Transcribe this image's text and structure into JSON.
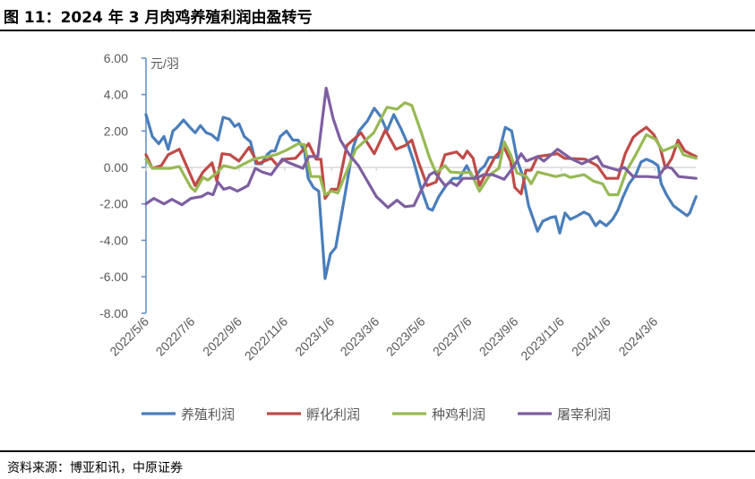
{
  "title": "图 11：2024 年 3 月肉鸡养殖利润由盈转亏",
  "source": "资料来源：博亚和讯，中原证券",
  "chart_data": {
    "type": "line",
    "title": "图 11：2024 年 3 月肉鸡养殖利润由盈转亏",
    "ylabel": "元/羽",
    "xlabel": "",
    "x_unit": "weeks since 2022/5/6",
    "ylim": [
      -8,
      6
    ],
    "yticks": [
      "6.00",
      "4.00",
      "2.00",
      "0.00",
      "-2.00",
      "-4.00",
      "-6.00",
      "-8.00"
    ],
    "ytick_values": [
      6,
      4,
      2,
      0,
      -2,
      -4,
      -6,
      -8
    ],
    "xlim": [
      0,
      104.1
    ],
    "xtick_labels": [
      "2022/5/6",
      "2022/7/6",
      "2022/9/6",
      "2022/11/6",
      "2023/1/6",
      "2023/3/6",
      "2023/5/6",
      "2023/7/6",
      "2023/9/6",
      "2023/11/6",
      "2024/1/6",
      "2024/3/6"
    ],
    "xtick_weeks": [
      0,
      8.7,
      17.6,
      26.3,
      35.1,
      43.6,
      52.3,
      61.1,
      69.9,
      78.6,
      87.4,
      96.3
    ],
    "legend_position": "bottom",
    "grid": false,
    "series": [
      {
        "name": "养殖利润",
        "color": "#4a7ebb",
        "points": [
          [
            0,
            2.9
          ],
          [
            1.2,
            1.7
          ],
          [
            2.4,
            1.3
          ],
          [
            3.4,
            1.7
          ],
          [
            4.2,
            1.0
          ],
          [
            5.1,
            2.0
          ],
          [
            5.9,
            2.2
          ],
          [
            7.1,
            2.6
          ],
          [
            8.3,
            2.2
          ],
          [
            9.3,
            1.9
          ],
          [
            10.3,
            2.3
          ],
          [
            11.4,
            1.9
          ],
          [
            12.4,
            1.8
          ],
          [
            13.6,
            1.5
          ],
          [
            14.6,
            2.75
          ],
          [
            15.8,
            2.65
          ],
          [
            16.8,
            2.25
          ],
          [
            17.6,
            2.4
          ],
          [
            18.6,
            1.7
          ],
          [
            19.8,
            1.4
          ],
          [
            20.8,
            0.2
          ],
          [
            21.9,
            0.2
          ],
          [
            22.9,
            0.7
          ],
          [
            23.7,
            0.9
          ],
          [
            24.4,
            0.9
          ],
          [
            25.4,
            1.7
          ],
          [
            26.6,
            2.0
          ],
          [
            27.8,
            1.5
          ],
          [
            28.8,
            1.5
          ],
          [
            30.0,
            0.9
          ],
          [
            30.7,
            -0.6
          ],
          [
            31.7,
            -1.1
          ],
          [
            32.7,
            -1.3
          ],
          [
            33.9,
            -6.1
          ],
          [
            34.9,
            -4.75
          ],
          [
            35.9,
            -4.4
          ],
          [
            37.6,
            -1.6
          ],
          [
            39.2,
            1.1
          ],
          [
            40.3,
            2.0
          ],
          [
            41.9,
            2.55
          ],
          [
            43.2,
            3.25
          ],
          [
            44.4,
            2.8
          ],
          [
            45.6,
            2.0
          ],
          [
            46.9,
            2.9
          ],
          [
            48.3,
            2.1
          ],
          [
            49.5,
            1.3
          ],
          [
            50.7,
            0.3
          ],
          [
            52.0,
            -1.1
          ],
          [
            53.4,
            -2.25
          ],
          [
            54.2,
            -2.35
          ],
          [
            55.4,
            -1.6
          ],
          [
            56.8,
            -1.0
          ],
          [
            58.1,
            -0.6
          ],
          [
            59.3,
            -0.6
          ],
          [
            60.7,
            0.1
          ],
          [
            61.5,
            -0.4
          ],
          [
            62.2,
            -0.6
          ],
          [
            63.2,
            -0.15
          ],
          [
            64.1,
            0.1
          ],
          [
            64.9,
            0.55
          ],
          [
            66.6,
            0.55
          ],
          [
            68.0,
            2.2
          ],
          [
            69.2,
            2.0
          ],
          [
            70.3,
            0.35
          ],
          [
            71.4,
            -0.55
          ],
          [
            72.4,
            -2.1
          ],
          [
            74.1,
            -3.5
          ],
          [
            75.1,
            -2.95
          ],
          [
            76.6,
            -2.75
          ],
          [
            77.5,
            -2.7
          ],
          [
            78.3,
            -3.6
          ],
          [
            79.3,
            -2.5
          ],
          [
            80.3,
            -2.85
          ],
          [
            81.7,
            -2.65
          ],
          [
            82.9,
            -2.45
          ],
          [
            83.9,
            -2.6
          ],
          [
            85.1,
            -3.2
          ],
          [
            85.9,
            -2.95
          ],
          [
            87.1,
            -3.2
          ],
          [
            88.3,
            -2.85
          ],
          [
            89.3,
            -2.35
          ],
          [
            90.3,
            -1.6
          ],
          [
            91.4,
            -0.9
          ],
          [
            92.7,
            -0.4
          ],
          [
            93.7,
            0.3
          ],
          [
            94.7,
            0.45
          ],
          [
            95.9,
            0.3
          ],
          [
            96.9,
            0.1
          ],
          [
            97.5,
            -0.9
          ],
          [
            98.5,
            -1.5
          ],
          [
            99.8,
            -2.1
          ],
          [
            101.2,
            -2.4
          ],
          [
            102.4,
            -2.65
          ],
          [
            102.9,
            -2.5
          ],
          [
            104.1,
            -1.6
          ]
        ]
      },
      {
        "name": "孵化利润",
        "color": "#be4b48",
        "points": [
          [
            0,
            0.7
          ],
          [
            1.2,
            -0.05
          ],
          [
            2.9,
            0.1
          ],
          [
            4.2,
            0.7
          ],
          [
            6.3,
            1.0
          ],
          [
            9.3,
            -1.0
          ],
          [
            10.8,
            -0.25
          ],
          [
            12.5,
            0.25
          ],
          [
            13.4,
            -0.75
          ],
          [
            14.4,
            0.75
          ],
          [
            15.9,
            0.7
          ],
          [
            17.6,
            0.35
          ],
          [
            19.5,
            1.1
          ],
          [
            21.2,
            0.2
          ],
          [
            23.7,
            0.5
          ],
          [
            24.9,
            0.1
          ],
          [
            26.1,
            0.45
          ],
          [
            28.3,
            0.5
          ],
          [
            30.8,
            1.3
          ],
          [
            32.2,
            0.45
          ],
          [
            33.1,
            0.45
          ],
          [
            33.9,
            -1.7
          ],
          [
            35.1,
            -1.2
          ],
          [
            36.3,
            -1.2
          ],
          [
            38.0,
            1.2
          ],
          [
            40.7,
            1.9
          ],
          [
            43.2,
            0.75
          ],
          [
            45.3,
            2.05
          ],
          [
            47.3,
            1.0
          ],
          [
            49.0,
            1.2
          ],
          [
            50.3,
            1.5
          ],
          [
            51.5,
            0.35
          ],
          [
            53.2,
            -1.0
          ],
          [
            54.9,
            -0.8
          ],
          [
            56.6,
            0.7
          ],
          [
            58.8,
            0.85
          ],
          [
            60.0,
            0.5
          ],
          [
            60.8,
            0.9
          ],
          [
            61.9,
            0.5
          ],
          [
            63.1,
            -1.0
          ],
          [
            64.4,
            -0.3
          ],
          [
            66.1,
            0.6
          ],
          [
            67.8,
            1.1
          ],
          [
            69.0,
            0.35
          ],
          [
            69.8,
            -1.1
          ],
          [
            71.0,
            -1.45
          ],
          [
            71.9,
            -0.15
          ],
          [
            72.9,
            -0.15
          ],
          [
            74.1,
            0.6
          ],
          [
            77.9,
            0.75
          ],
          [
            79.2,
            0.5
          ],
          [
            83.1,
            0.45
          ],
          [
            85.4,
            0.1
          ],
          [
            87.1,
            -0.6
          ],
          [
            89.3,
            -0.6
          ],
          [
            90.7,
            0.75
          ],
          [
            92.2,
            1.65
          ],
          [
            93.2,
            1.9
          ],
          [
            94.7,
            2.2
          ],
          [
            96.1,
            1.8
          ],
          [
            97.3,
            1.1
          ],
          [
            98.3,
            -0.05
          ],
          [
            99.5,
            0.5
          ],
          [
            100.7,
            1.5
          ],
          [
            102.0,
            0.9
          ],
          [
            104.1,
            0.6
          ]
        ]
      },
      {
        "name": "种鸡利润",
        "color": "#98b954",
        "points": [
          [
            0,
            0.45
          ],
          [
            1.2,
            -0.05
          ],
          [
            4.6,
            -0.05
          ],
          [
            6.3,
            0.05
          ],
          [
            8.5,
            -1.1
          ],
          [
            9.3,
            -1.3
          ],
          [
            10.8,
            -0.55
          ],
          [
            11.7,
            -0.7
          ],
          [
            13.4,
            -0.3
          ],
          [
            14.7,
            0.1
          ],
          [
            16.9,
            -0.05
          ],
          [
            20.3,
            0.45
          ],
          [
            24.6,
            0.7
          ],
          [
            26.6,
            0.95
          ],
          [
            28.8,
            1.3
          ],
          [
            30.0,
            1.25
          ],
          [
            31.2,
            -0.5
          ],
          [
            32.9,
            -0.5
          ],
          [
            33.9,
            -1.5
          ],
          [
            35.1,
            -1.3
          ],
          [
            36.3,
            -1.4
          ],
          [
            39.7,
            1.0
          ],
          [
            43.1,
            1.9
          ],
          [
            45.6,
            3.3
          ],
          [
            47.5,
            3.2
          ],
          [
            49.0,
            3.55
          ],
          [
            50.3,
            3.4
          ],
          [
            52.0,
            2.0
          ],
          [
            53.7,
            0.5
          ],
          [
            54.9,
            -0.3
          ],
          [
            56.6,
            0.1
          ],
          [
            57.6,
            -0.25
          ],
          [
            60.0,
            -0.3
          ],
          [
            61.4,
            -0.25
          ],
          [
            63.1,
            -1.3
          ],
          [
            65.1,
            -0.4
          ],
          [
            66.8,
            -0.05
          ],
          [
            67.8,
            1.4
          ],
          [
            69.0,
            0.7
          ],
          [
            70.2,
            -0.3
          ],
          [
            72.0,
            -0.5
          ],
          [
            72.9,
            -0.9
          ],
          [
            74.1,
            -0.25
          ],
          [
            77.5,
            -0.5
          ],
          [
            79.2,
            -0.4
          ],
          [
            80.3,
            -0.55
          ],
          [
            82.9,
            -0.4
          ],
          [
            84.7,
            -0.75
          ],
          [
            86.4,
            -0.9
          ],
          [
            87.6,
            -1.5
          ],
          [
            89.3,
            -1.5
          ],
          [
            91.0,
            -0.15
          ],
          [
            92.7,
            0.7
          ],
          [
            94.7,
            1.8
          ],
          [
            96.4,
            1.55
          ],
          [
            97.8,
            0.9
          ],
          [
            100.7,
            1.25
          ],
          [
            101.7,
            0.7
          ],
          [
            104.1,
            0.5
          ]
        ]
      },
      {
        "name": "屠宰利润",
        "color": "#7d5fa0",
        "points": [
          [
            0,
            -2.0
          ],
          [
            1.5,
            -1.7
          ],
          [
            3.4,
            -2.0
          ],
          [
            4.9,
            -1.75
          ],
          [
            6.8,
            -2.05
          ],
          [
            8.5,
            -1.7
          ],
          [
            10.5,
            -1.6
          ],
          [
            11.7,
            -1.4
          ],
          [
            12.7,
            -1.5
          ],
          [
            13.6,
            -0.8
          ],
          [
            14.7,
            -1.2
          ],
          [
            15.9,
            -1.1
          ],
          [
            17.3,
            -1.3
          ],
          [
            19.3,
            -1.0
          ],
          [
            20.7,
            -0.05
          ],
          [
            22.0,
            -0.25
          ],
          [
            23.7,
            -0.4
          ],
          [
            25.8,
            0.45
          ],
          [
            27.1,
            0.25
          ],
          [
            29.7,
            -0.05
          ],
          [
            30.8,
            0.6
          ],
          [
            32.5,
            0.6
          ],
          [
            34.1,
            4.35
          ],
          [
            35.4,
            2.7
          ],
          [
            36.8,
            1.5
          ],
          [
            38.5,
            0.7
          ],
          [
            40.2,
            0.1
          ],
          [
            43.6,
            -1.6
          ],
          [
            45.8,
            -2.2
          ],
          [
            47.5,
            -1.8
          ],
          [
            49.0,
            -2.15
          ],
          [
            50.7,
            -2.1
          ],
          [
            52.0,
            -1.3
          ],
          [
            53.7,
            -0.4
          ],
          [
            54.6,
            -0.25
          ],
          [
            56.6,
            -1.0
          ],
          [
            57.6,
            -0.8
          ],
          [
            58.8,
            -1.0
          ],
          [
            60.0,
            -0.6
          ],
          [
            62.5,
            -0.6
          ],
          [
            63.9,
            -0.4
          ],
          [
            65.6,
            -0.4
          ],
          [
            67.8,
            -0.65
          ],
          [
            69.5,
            0.0
          ],
          [
            71.0,
            0.75
          ],
          [
            72.0,
            0.35
          ],
          [
            74.1,
            0.6
          ],
          [
            75.3,
            0.35
          ],
          [
            77.9,
            1.0
          ],
          [
            80.3,
            0.5
          ],
          [
            82.5,
            0.2
          ],
          [
            85.4,
            0.6
          ],
          [
            86.4,
            0.1
          ],
          [
            89.3,
            -0.15
          ],
          [
            90.5,
            0.0
          ],
          [
            92.2,
            -0.5
          ],
          [
            94.9,
            -0.5
          ],
          [
            96.9,
            -0.55
          ],
          [
            98.3,
            0.05
          ],
          [
            99.5,
            -0.05
          ],
          [
            100.8,
            -0.5
          ],
          [
            104.1,
            -0.6
          ]
        ]
      }
    ]
  }
}
